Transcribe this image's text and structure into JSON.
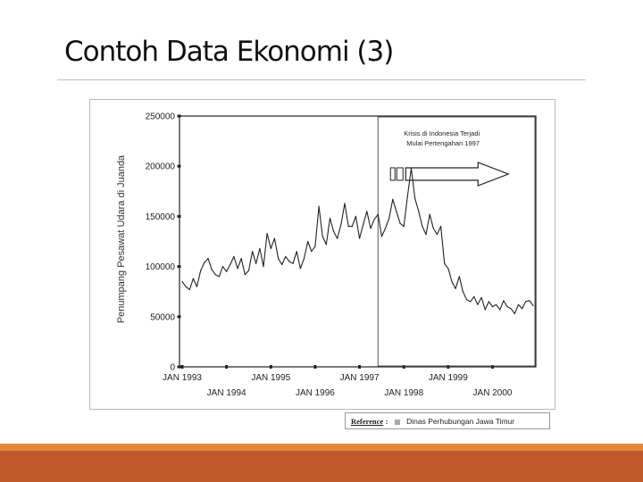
{
  "slide": {
    "title": "Contoh Data Ekonomi (3)"
  },
  "reference": {
    "label": "Reference",
    "colon": ":",
    "source": "Dinas Perhubungan Jawa Timur"
  },
  "colors": {
    "footer": "#c0582a",
    "footer_accent": "#e58a3b",
    "series": "#222222"
  },
  "chart_data": {
    "type": "line",
    "ylabel": "Penumpang Pesawat Udara di Juanda",
    "xlabel": "",
    "ylim": [
      0,
      250000
    ],
    "yticks": [
      0,
      50000,
      100000,
      150000,
      200000,
      250000
    ],
    "ytick_labels": [
      "0",
      "50000",
      "100000",
      "150000",
      "200000",
      "250000"
    ],
    "xlim": [
      "1993-01",
      "2000-12"
    ],
    "xticks_top": [
      "JAN 1993",
      "JAN 1995",
      "JAN 1997",
      "JAN 1999"
    ],
    "xticks_bottom": [
      "JAN 1994",
      "JAN 1996",
      "JAN 1998",
      "JAN 2000"
    ],
    "grid": false,
    "annotation": {
      "text": [
        "Krisis di Indonesia Terjadi",
        "Mulai Pertengahan 1997"
      ],
      "region": [
        "1997-06",
        "2000-12"
      ]
    },
    "series": [
      {
        "x": [
          "1993-01",
          "1993-02",
          "1993-03",
          "1993-04",
          "1993-05",
          "1993-06",
          "1993-07",
          "1993-08",
          "1993-09",
          "1993-10",
          "1993-11",
          "1993-12",
          "1994-01",
          "1994-02",
          "1994-03",
          "1994-04",
          "1994-05",
          "1994-06",
          "1994-07",
          "1994-08",
          "1994-09",
          "1994-10",
          "1994-11",
          "1994-12",
          "1995-01",
          "1995-02",
          "1995-03",
          "1995-04",
          "1995-05",
          "1995-06",
          "1995-07",
          "1995-08",
          "1995-09",
          "1995-10",
          "1995-11",
          "1995-12",
          "1996-01",
          "1996-02",
          "1996-03",
          "1996-04",
          "1996-05",
          "1996-06",
          "1996-07",
          "1996-08",
          "1996-09",
          "1996-10",
          "1996-11",
          "1996-12",
          "1997-01",
          "1997-02",
          "1997-03",
          "1997-04",
          "1997-05",
          "1997-06",
          "1997-07",
          "1997-08",
          "1997-09",
          "1997-10",
          "1997-11",
          "1997-12",
          "1998-01",
          "1998-02",
          "1998-03",
          "1998-04",
          "1998-05",
          "1998-06",
          "1998-07",
          "1998-08",
          "1998-09",
          "1998-10",
          "1998-11",
          "1998-12",
          "1999-01",
          "1999-02",
          "1999-03",
          "1999-04",
          "1999-05",
          "1999-06",
          "1999-07",
          "1999-08",
          "1999-09",
          "1999-10",
          "1999-11",
          "1999-12",
          "2000-01",
          "2000-02",
          "2000-03",
          "2000-04",
          "2000-05",
          "2000-06",
          "2000-07",
          "2000-08",
          "2000-09",
          "2000-10",
          "2000-11",
          "2000-12"
        ],
        "values": [
          85000,
          80000,
          77000,
          88000,
          80000,
          96000,
          104000,
          108000,
          97000,
          92000,
          90000,
          100000,
          95000,
          102000,
          110000,
          98000,
          108000,
          92000,
          96000,
          115000,
          103000,
          118000,
          100000,
          133000,
          118000,
          128000,
          108000,
          102000,
          110000,
          105000,
          103000,
          115000,
          98000,
          108000,
          125000,
          115000,
          120000,
          160000,
          130000,
          122000,
          148000,
          135000,
          128000,
          142000,
          163000,
          140000,
          140000,
          150000,
          128000,
          142000,
          155000,
          138000,
          147000,
          152000,
          130000,
          138000,
          148000,
          167000,
          155000,
          143000,
          140000,
          170000,
          198000,
          168000,
          155000,
          140000,
          132000,
          152000,
          138000,
          132000,
          140000,
          103000,
          98000,
          85000,
          78000,
          90000,
          75000,
          67000,
          65000,
          70000,
          62000,
          69000,
          57000,
          65000,
          60000,
          62000,
          57000,
          66000,
          60000,
          58000,
          53000,
          62000,
          58000,
          65000,
          66000,
          61000
        ]
      }
    ]
  }
}
